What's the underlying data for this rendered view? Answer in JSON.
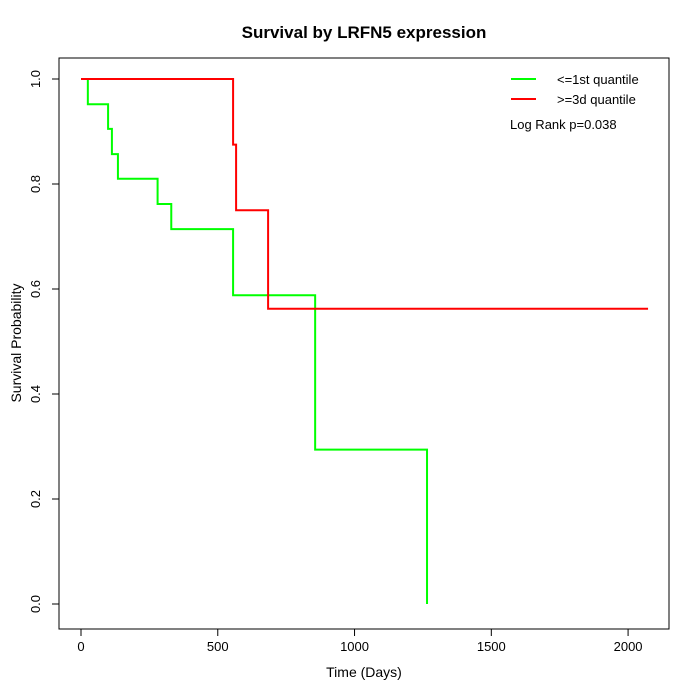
{
  "title": "Survival by LRFN5 expression",
  "x_axis": {
    "label": "Time (Days)",
    "tick_labels": [
      "0",
      "500",
      "1000",
      "1500",
      "2000"
    ],
    "tick_values": [
      0,
      500,
      1000,
      1500,
      2000
    ]
  },
  "y_axis": {
    "label": "Survival Probability",
    "tick_labels": [
      "0.0",
      "0.2",
      "0.4",
      "0.6",
      "0.8",
      "1.0"
    ],
    "tick_values": [
      0,
      0.2,
      0.4,
      0.6,
      0.8,
      1.0
    ]
  },
  "legend": {
    "items": [
      {
        "label": "<=1st quantile",
        "color": "#00ff00"
      },
      {
        "label": ">=3d quantile",
        "color": "#ff0000"
      }
    ],
    "stat_note": "Log Rank p=0.038"
  },
  "chart_data": {
    "type": "line",
    "subtype": "kaplan-meier-step",
    "title": "Survival by LRFN5 expression",
    "xlabel": "Time (Days)",
    "ylabel": "Survival Probability",
    "xlim": [
      0,
      2000
    ],
    "ylim": [
      0.0,
      1.0
    ],
    "grid": false,
    "legend_position": "top-right",
    "annotation": "Log Rank p=0.038",
    "series": [
      {
        "name": "<=1st quantile",
        "color": "#00ff00",
        "steps": [
          [
            0,
            1.0
          ],
          [
            25,
            0.952
          ],
          [
            99,
            0.905
          ],
          [
            113,
            0.857
          ],
          [
            135,
            0.81
          ],
          [
            280,
            0.762
          ],
          [
            330,
            0.714
          ],
          [
            556,
            0.588
          ],
          [
            856,
            0.294
          ],
          [
            1265,
            0.0
          ]
        ],
        "end_time": 1265
      },
      {
        "name": ">=3d quantile",
        "color": "#ff0000",
        "steps": [
          [
            0,
            1.0
          ],
          [
            556,
            0.875
          ],
          [
            567,
            0.75
          ],
          [
            684,
            0.5625
          ]
        ],
        "end_time": 2073
      }
    ]
  }
}
